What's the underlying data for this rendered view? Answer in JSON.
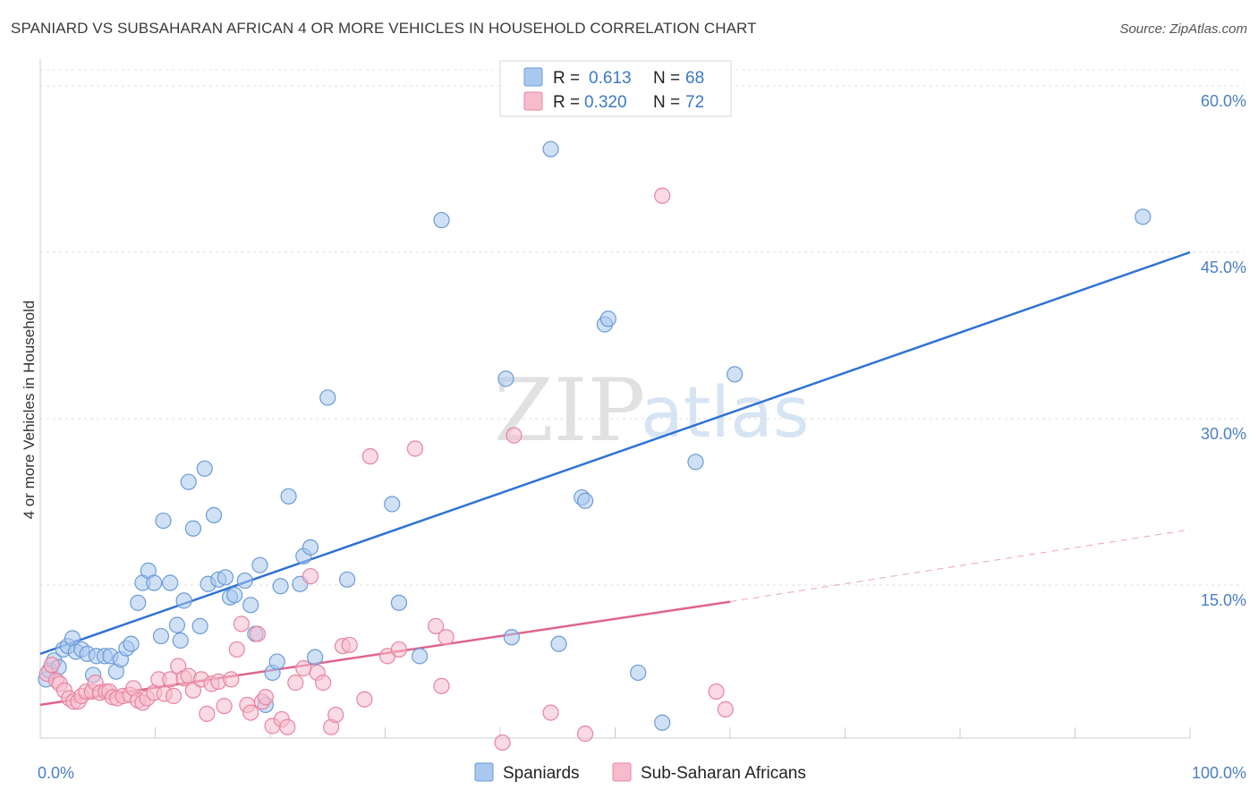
{
  "title": "SPANIARD VS SUBSAHARAN AFRICAN 4 OR MORE VEHICLES IN HOUSEHOLD CORRELATION CHART",
  "source": "Source: ZipAtlas.com",
  "watermark": {
    "part1": "ZIP",
    "part2": "atlas"
  },
  "legend": {
    "rows": [
      {
        "r_label": "R =",
        "r_value": "0.613",
        "n_label": "N =",
        "n_value": "68",
        "color": "#a9c8ee",
        "stroke": "#6b9bd6"
      },
      {
        "r_label": "R =",
        "r_value": "0.320",
        "n_label": "N =",
        "n_value": "72",
        "color": "#f6bccd",
        "stroke": "#e8849f"
      }
    ]
  },
  "bottom_legend": [
    {
      "label": "Spaniards",
      "color": "#a9c8ee",
      "stroke": "#6b9bd6"
    },
    {
      "label": "Sub-Saharan Africans",
      "color": "#f6bccd",
      "stroke": "#e8849f"
    }
  ],
  "chart_data": {
    "type": "scatter",
    "title": "SPANIARD VS SUBSAHARAN AFRICAN 4 OR MORE VEHICLES IN HOUSEHOLD CORRELATION CHART",
    "xlabel": "",
    "ylabel": "4 or more Vehicles in Household",
    "xlim": [
      0,
      100
    ],
    "ylim": [
      0,
      62
    ],
    "x_tick_labels": [
      {
        "value": 0,
        "label": "0.0%"
      },
      {
        "value": 100,
        "label": "100.0%"
      }
    ],
    "y_tick_labels": [
      {
        "value": 15,
        "label": "15.0%"
      },
      {
        "value": 30,
        "label": "30.0%"
      },
      {
        "value": 45,
        "label": "45.0%"
      },
      {
        "value": 60,
        "label": "60.0%"
      }
    ],
    "grid": "horizontal dashed",
    "legend_position": "top-center",
    "series": [
      {
        "name": "Spaniards",
        "color": "#6b9bd6",
        "fill": "#a9c8ee",
        "trend": {
          "x": [
            0,
            100
          ],
          "y": [
            8.8,
            45.0
          ],
          "color": "#2f72d4"
        },
        "points": [
          [
            0.5,
            6.5
          ],
          [
            0.8,
            7.3
          ],
          [
            1.2,
            8.2
          ],
          [
            1.6,
            7.6
          ],
          [
            2.0,
            9.2
          ],
          [
            2.4,
            9.5
          ],
          [
            2.8,
            10.2
          ],
          [
            3.1,
            9.0
          ],
          [
            3.6,
            9.2
          ],
          [
            4.1,
            8.8
          ],
          [
            4.6,
            6.9
          ],
          [
            4.9,
            8.6
          ],
          [
            5.6,
            8.6
          ],
          [
            6.1,
            8.6
          ],
          [
            6.6,
            7.2
          ],
          [
            7.0,
            8.3
          ],
          [
            7.5,
            9.3
          ],
          [
            7.9,
            9.7
          ],
          [
            8.5,
            13.4
          ],
          [
            8.9,
            15.2
          ],
          [
            9.4,
            16.3
          ],
          [
            9.9,
            15.2
          ],
          [
            10.5,
            10.4
          ],
          [
            10.7,
            20.8
          ],
          [
            11.3,
            15.2
          ],
          [
            11.9,
            11.4
          ],
          [
            12.2,
            10.0
          ],
          [
            12.5,
            13.6
          ],
          [
            12.9,
            24.3
          ],
          [
            13.3,
            20.1
          ],
          [
            13.9,
            11.3
          ],
          [
            14.3,
            25.5
          ],
          [
            14.6,
            15.1
          ],
          [
            15.1,
            21.3
          ],
          [
            15.5,
            15.5
          ],
          [
            16.1,
            15.7
          ],
          [
            16.5,
            13.9
          ],
          [
            16.9,
            14.1
          ],
          [
            17.8,
            15.4
          ],
          [
            18.3,
            13.2
          ],
          [
            18.7,
            10.6
          ],
          [
            19.1,
            16.8
          ],
          [
            19.6,
            4.2
          ],
          [
            20.2,
            7.1
          ],
          [
            20.6,
            8.1
          ],
          [
            20.9,
            14.9
          ],
          [
            21.6,
            23.0
          ],
          [
            22.6,
            15.1
          ],
          [
            22.9,
            17.6
          ],
          [
            23.5,
            18.4
          ],
          [
            23.9,
            8.5
          ],
          [
            25.0,
            31.9
          ],
          [
            26.7,
            15.5
          ],
          [
            30.6,
            22.3
          ],
          [
            31.2,
            13.4
          ],
          [
            33.0,
            8.6
          ],
          [
            34.9,
            47.9
          ],
          [
            40.5,
            33.6
          ],
          [
            41.0,
            10.3
          ],
          [
            44.4,
            54.3
          ],
          [
            45.1,
            9.7
          ],
          [
            47.1,
            22.9
          ],
          [
            47.4,
            22.6
          ],
          [
            49.1,
            38.5
          ],
          [
            49.4,
            39.0
          ],
          [
            52.0,
            7.1
          ],
          [
            54.1,
            2.6
          ],
          [
            57.0,
            26.1
          ],
          [
            60.4,
            34.0
          ],
          [
            95.9,
            48.2
          ]
        ]
      },
      {
        "name": "Sub-Saharan Africans",
        "color": "#e8849f",
        "fill": "#f6bccd",
        "trend": {
          "x": [
            0,
            60
          ],
          "y": [
            4.2,
            13.5
          ],
          "color": "#e0648a",
          "dashed_extension": {
            "x": [
              60,
              100
            ],
            "y": [
              13.5,
              20.0
            ]
          }
        },
        "points": [
          [
            0.6,
            7.0
          ],
          [
            1.0,
            7.8
          ],
          [
            1.4,
            6.4
          ],
          [
            1.7,
            6.1
          ],
          [
            2.1,
            5.5
          ],
          [
            2.5,
            4.8
          ],
          [
            2.9,
            4.5
          ],
          [
            3.3,
            4.5
          ],
          [
            3.6,
            5.0
          ],
          [
            4.0,
            5.4
          ],
          [
            4.5,
            5.4
          ],
          [
            4.8,
            6.2
          ],
          [
            5.2,
            5.3
          ],
          [
            5.7,
            5.4
          ],
          [
            6.0,
            5.4
          ],
          [
            6.3,
            4.9
          ],
          [
            6.7,
            4.8
          ],
          [
            7.2,
            5.0
          ],
          [
            7.8,
            5.1
          ],
          [
            8.1,
            5.7
          ],
          [
            8.5,
            4.6
          ],
          [
            8.9,
            4.4
          ],
          [
            9.3,
            4.8
          ],
          [
            9.9,
            5.3
          ],
          [
            10.3,
            6.5
          ],
          [
            10.8,
            5.2
          ],
          [
            11.3,
            6.5
          ],
          [
            11.6,
            5.0
          ],
          [
            12.0,
            7.7
          ],
          [
            12.5,
            6.6
          ],
          [
            12.9,
            6.8
          ],
          [
            13.3,
            5.5
          ],
          [
            14.0,
            6.5
          ],
          [
            14.5,
            3.4
          ],
          [
            14.9,
            6.1
          ],
          [
            15.5,
            6.3
          ],
          [
            16.0,
            4.1
          ],
          [
            16.6,
            6.5
          ],
          [
            17.1,
            9.2
          ],
          [
            17.5,
            11.5
          ],
          [
            18.0,
            4.2
          ],
          [
            18.3,
            3.5
          ],
          [
            18.9,
            10.6
          ],
          [
            19.3,
            4.5
          ],
          [
            19.6,
            4.9
          ],
          [
            20.2,
            2.3
          ],
          [
            21.0,
            2.9
          ],
          [
            21.5,
            2.2
          ],
          [
            22.2,
            6.2
          ],
          [
            22.9,
            7.5
          ],
          [
            23.5,
            15.8
          ],
          [
            24.1,
            7.1
          ],
          [
            24.6,
            6.2
          ],
          [
            25.3,
            2.2
          ],
          [
            25.7,
            3.3
          ],
          [
            26.3,
            9.5
          ],
          [
            26.9,
            9.6
          ],
          [
            28.2,
            4.7
          ],
          [
            28.7,
            26.6
          ],
          [
            30.2,
            8.6
          ],
          [
            31.2,
            9.2
          ],
          [
            32.6,
            27.3
          ],
          [
            34.4,
            11.3
          ],
          [
            34.9,
            5.9
          ],
          [
            35.3,
            10.3
          ],
          [
            40.2,
            0.8
          ],
          [
            41.2,
            28.5
          ],
          [
            44.4,
            3.5
          ],
          [
            47.4,
            1.6
          ],
          [
            54.1,
            50.1
          ],
          [
            58.8,
            5.4
          ],
          [
            59.6,
            3.8
          ]
        ]
      }
    ]
  }
}
